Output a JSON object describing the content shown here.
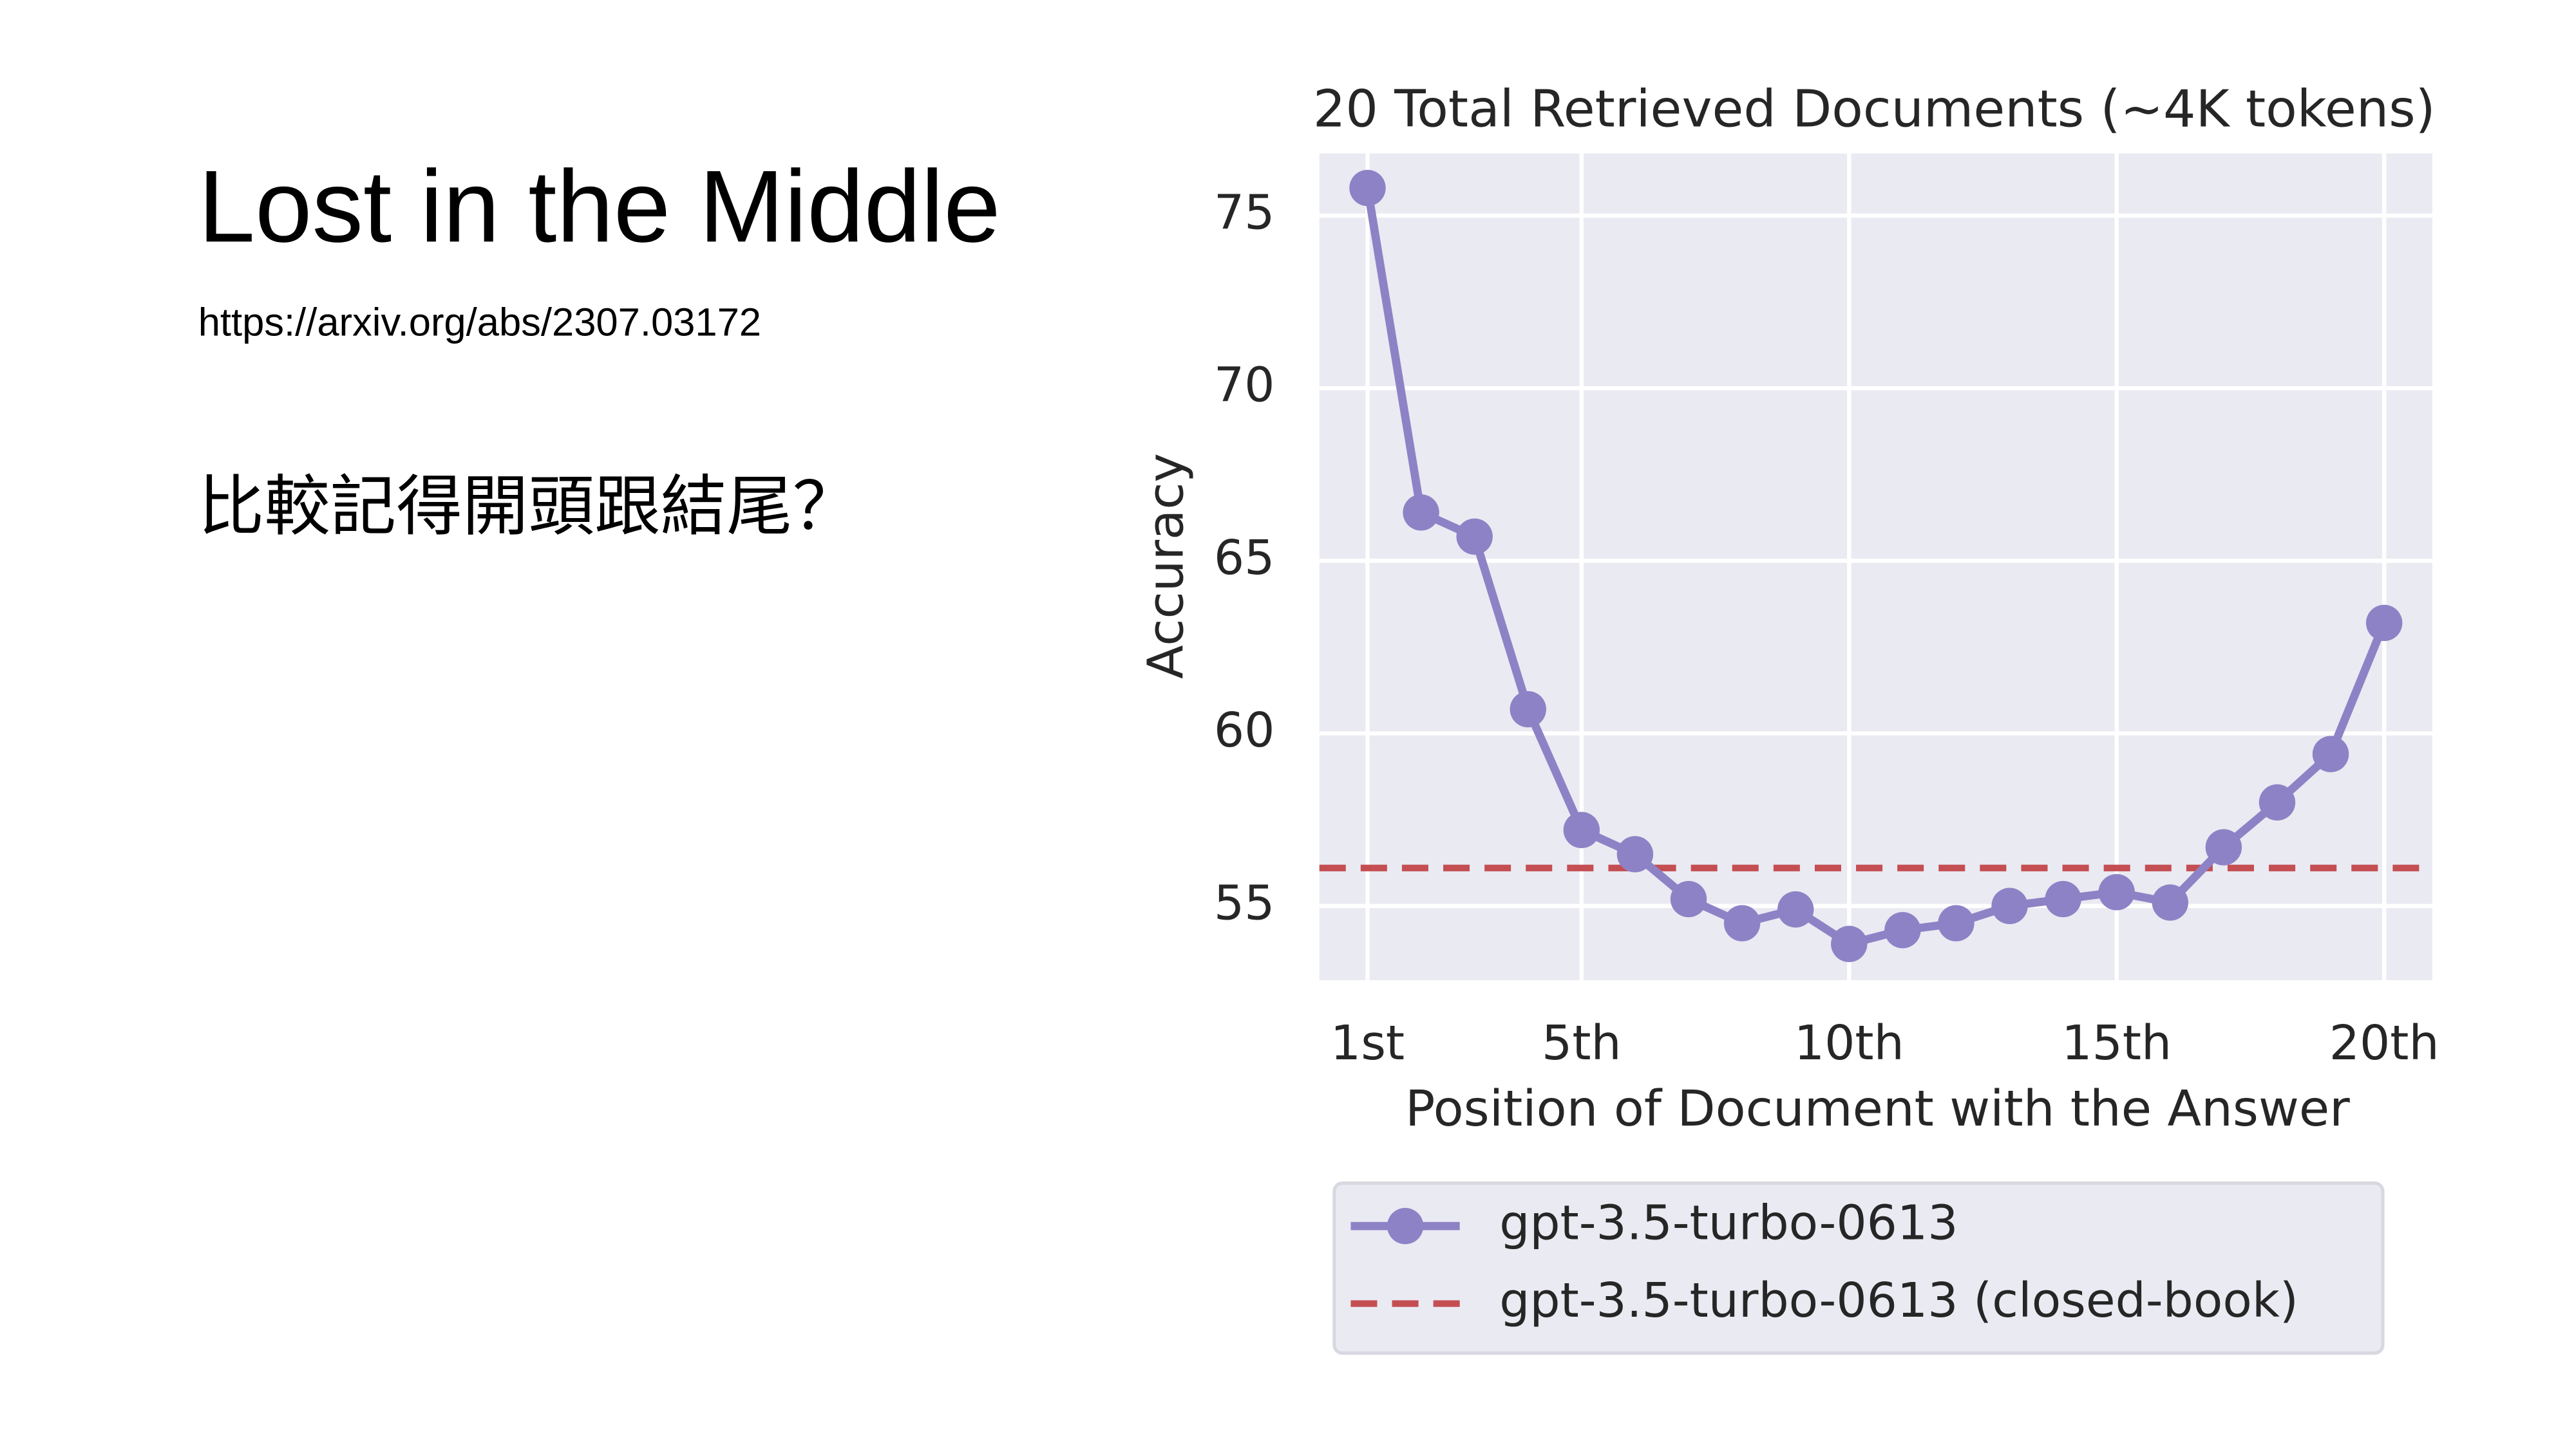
{
  "slide": {
    "title": "Lost in the Middle",
    "link": "https://arxiv.org/abs/2307.03172",
    "question": "比較記得開頭跟結尾？"
  },
  "chart_data": {
    "type": "line",
    "title": "20 Total Retrieved Documents (~4K tokens)",
    "x_label": "Position of Document with the Answer",
    "y_label": "Accuracy",
    "x": [
      1,
      2,
      3,
      4,
      5,
      6,
      7,
      8,
      9,
      10,
      11,
      12,
      13,
      14,
      15,
      16,
      17,
      18,
      19,
      20
    ],
    "series": [
      {
        "name": "gpt-3.5-turbo-0613",
        "color": "#8e82c6",
        "values": [
          75.8,
          66.4,
          65.7,
          60.7,
          57.2,
          56.5,
          55.2,
          54.5,
          54.9,
          53.9,
          54.3,
          54.5,
          55.0,
          55.2,
          55.4,
          55.1,
          56.7,
          58.0,
          59.4,
          63.2
        ]
      }
    ],
    "reference_lines": [
      {
        "name": "gpt-3.5-turbo-0613 (closed-book)",
        "value": 56.1,
        "color": "#c44e52",
        "style": "dashed"
      }
    ],
    "xlim": [
      0.1,
      20.9
    ],
    "ylim": [
      52.85,
      76.8
    ],
    "xticks": [
      {
        "value": 1,
        "label": "1st"
      },
      {
        "value": 5,
        "label": "5th"
      },
      {
        "value": 10,
        "label": "10th"
      },
      {
        "value": 15,
        "label": "15th"
      },
      {
        "value": 20,
        "label": "20th"
      }
    ],
    "yticks": [
      55,
      60,
      65,
      70,
      75
    ],
    "grid": true,
    "background": "#eaeaf2"
  }
}
